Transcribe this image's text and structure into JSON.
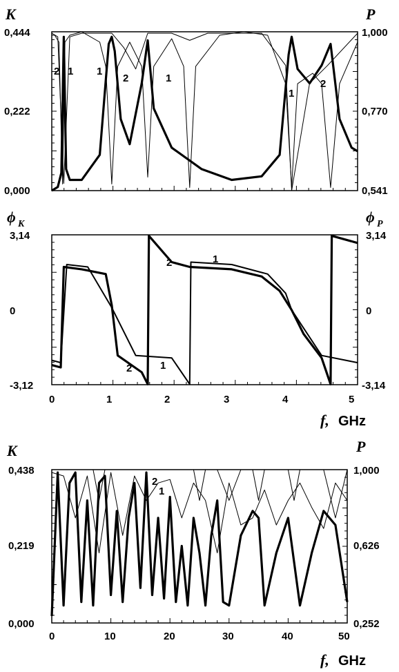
{
  "chart_data": [
    {
      "type": "line",
      "panel": "top",
      "ylabel_left": "K",
      "ylabel_right": "P",
      "xlim": [
        0,
        5.1
      ],
      "ylim_left": [
        0.0,
        0.444
      ],
      "ylim_right": [
        0.541,
        1.0
      ],
      "yticks_left": [
        "0,444",
        "0,222",
        "0,000"
      ],
      "yticks_right": [
        "1,000",
        "0,770",
        "0,541"
      ],
      "curve_labels": [
        "1",
        "2",
        "1",
        "2",
        "1",
        "1",
        "2"
      ],
      "series": [
        {
          "name": "K (curve 1, thick)",
          "style": "thick",
          "axis": "left",
          "x": [
            0.0,
            0.1,
            0.16,
            0.2,
            0.24,
            0.3,
            0.5,
            0.8,
            0.95,
            1.0,
            1.05,
            1.15,
            1.3,
            1.5,
            1.6,
            1.7,
            2.0,
            2.5,
            3.0,
            3.5,
            3.8,
            3.95,
            4.0,
            4.1,
            4.3,
            4.5,
            4.65,
            4.8,
            5.0,
            5.1
          ],
          "values": [
            0.0,
            0.01,
            0.05,
            0.43,
            0.06,
            0.03,
            0.03,
            0.1,
            0.41,
            0.43,
            0.39,
            0.2,
            0.13,
            0.3,
            0.42,
            0.23,
            0.12,
            0.06,
            0.03,
            0.04,
            0.1,
            0.38,
            0.43,
            0.34,
            0.3,
            0.35,
            0.41,
            0.2,
            0.12,
            0.11
          ]
        },
        {
          "name": "P (curve 2, thin)",
          "style": "thin",
          "axis": "right",
          "x": [
            0.0,
            0.05,
            0.12,
            0.18,
            0.22,
            0.3,
            0.5,
            0.8,
            0.9,
            1.0,
            1.1,
            1.3,
            1.5,
            1.6,
            1.7,
            2.0,
            2.2,
            2.3,
            2.4,
            2.8,
            3.2,
            3.6,
            3.9,
            4.0,
            4.1,
            4.35,
            4.5,
            4.65,
            4.8,
            5.1
          ],
          "values": [
            0.99,
            0.99,
            0.97,
            0.56,
            0.97,
            0.99,
            1.0,
            0.97,
            0.9,
            0.56,
            0.9,
            0.97,
            0.9,
            0.58,
            0.9,
            0.98,
            0.9,
            0.55,
            0.9,
            0.99,
            1.0,
            0.99,
            0.85,
            0.55,
            0.85,
            0.88,
            0.85,
            0.55,
            0.85,
            0.97
          ]
        },
        {
          "name": "K (curve 2, thin)",
          "style": "thin",
          "axis": "left",
          "x": [
            0.0,
            0.1,
            0.2,
            0.3,
            0.5,
            1.0,
            1.2,
            1.4,
            1.6,
            2.0,
            2.3,
            2.6,
            3.0,
            3.5,
            3.9,
            4.0,
            4.3,
            4.6,
            5.1
          ],
          "values": [
            0.44,
            0.43,
            0.02,
            0.43,
            0.44,
            0.44,
            0.4,
            0.34,
            0.44,
            0.44,
            0.42,
            0.44,
            0.44,
            0.44,
            0.35,
            0.0,
            0.3,
            0.35,
            0.44
          ]
        }
      ]
    },
    {
      "type": "line",
      "panel": "middle",
      "ylabel_left": "ϕ",
      "ylabel_left_sub": "K",
      "ylabel_right": "ϕ",
      "ylabel_right_sub": "P",
      "xlim": [
        0,
        5.1
      ],
      "ylim_left": [
        -3.12,
        3.14
      ],
      "ylim_right": [
        -3.14,
        3.14
      ],
      "yticks_left": [
        "3,14",
        "0",
        "-3,12"
      ],
      "yticks_right": [
        "3,14",
        "0",
        "-3,14"
      ],
      "xticks": [
        "0",
        "1",
        "2",
        "3",
        "4",
        "5"
      ],
      "xlabel": "f,",
      "xunit": "GHz",
      "curve_labels": [
        "2",
        "1",
        "2",
        "1"
      ],
      "series": [
        {
          "name": "phi_K (curve 1)",
          "style": "thick",
          "x": [
            0.0,
            0.15,
            0.2,
            0.5,
            0.9,
            1.0,
            1.1,
            1.5,
            1.6,
            1.62,
            2.0,
            2.3,
            3.0,
            3.5,
            3.8,
            4.0,
            4.2,
            4.5,
            4.65,
            4.67,
            5.1
          ],
          "values": [
            -2.3,
            -2.4,
            1.8,
            1.7,
            1.5,
            0.2,
            -1.9,
            -2.6,
            -3.1,
            3.1,
            2.0,
            1.8,
            1.7,
            1.4,
            0.8,
            0.0,
            -1.0,
            -2.0,
            -3.1,
            3.1,
            2.8
          ]
        },
        {
          "name": "phi_P (curve 2)",
          "style": "medium",
          "x": [
            0.0,
            0.15,
            0.25,
            0.6,
            1.0,
            1.4,
            2.0,
            2.3,
            2.32,
            3.0,
            3.6,
            3.9,
            4.0,
            4.5,
            5.1
          ],
          "values": [
            -2.1,
            -2.2,
            1.9,
            1.8,
            0.1,
            -1.9,
            -2.0,
            -3.1,
            2.0,
            1.9,
            1.5,
            0.7,
            0.0,
            -1.9,
            -2.2
          ]
        }
      ]
    },
    {
      "type": "line",
      "panel": "bottom",
      "ylabel_left": "K",
      "ylabel_right": "P",
      "xlim": [
        0,
        50
      ],
      "ylim_left": [
        0.0,
        0.438
      ],
      "ylim_right": [
        0.252,
        1.0
      ],
      "yticks_left": [
        "0,438",
        "0,219",
        "0,000"
      ],
      "yticks_right": [
        "1,000",
        "0,626",
        "0,252"
      ],
      "xticks": [
        "0",
        "10",
        "20",
        "30",
        "40",
        "50"
      ],
      "xlabel": "f,",
      "xunit": "GHz",
      "curve_labels": [
        "2",
        "1"
      ],
      "series": [
        {
          "name": "K (curve 1, thick)",
          "style": "thick",
          "x": [
            0,
            1,
            2,
            3,
            4,
            5,
            6,
            7,
            8,
            9,
            10,
            11,
            12,
            13,
            14,
            15,
            16,
            17,
            18,
            19,
            20,
            21,
            22,
            23,
            24,
            25,
            26,
            27,
            28,
            29,
            30,
            32,
            34,
            35,
            36,
            38,
            40,
            42,
            44,
            46,
            48,
            50
          ],
          "values": [
            0.02,
            0.43,
            0.05,
            0.4,
            0.43,
            0.06,
            0.35,
            0.05,
            0.4,
            0.42,
            0.08,
            0.32,
            0.06,
            0.3,
            0.4,
            0.1,
            0.43,
            0.08,
            0.3,
            0.07,
            0.36,
            0.06,
            0.22,
            0.05,
            0.3,
            0.2,
            0.05,
            0.25,
            0.35,
            0.06,
            0.05,
            0.25,
            0.32,
            0.3,
            0.05,
            0.2,
            0.3,
            0.05,
            0.2,
            0.32,
            0.28,
            0.06
          ]
        },
        {
          "name": "P (curve 2, thin)",
          "style": "thin",
          "x": [
            0,
            1,
            2,
            3,
            4,
            5,
            6,
            7,
            8,
            9,
            10,
            11,
            12,
            13,
            14,
            15,
            16,
            17,
            18,
            19,
            20,
            22,
            24,
            25,
            26,
            27,
            28,
            30,
            32,
            34,
            35,
            36,
            38,
            40,
            41,
            42,
            44,
            46,
            48,
            50
          ],
          "values": [
            0.95,
            0.98,
            0.5,
            0.98,
            0.45,
            0.97,
            0.5,
            0.99,
            0.35,
            0.98,
            0.98,
            0.6,
            0.98,
            0.55,
            0.96,
            0.5,
            0.98,
            0.85,
            0.9,
            0.6,
            0.97,
            0.95,
            0.6,
            0.35,
            0.98,
            0.9,
            0.85,
            0.35,
            0.9,
            0.98,
            0.35,
            0.95,
            0.9,
            0.45,
            0.35,
            0.9,
            0.98,
            0.9,
            0.3,
            0.9
          ]
        },
        {
          "name": "K (curve 2, thin)",
          "style": "thin",
          "x": [
            0,
            2,
            4,
            6,
            8,
            10,
            12,
            14,
            16,
            18,
            20,
            22,
            24,
            26,
            28,
            30,
            32,
            34,
            36,
            38,
            40,
            42,
            44,
            46,
            48,
            50
          ],
          "values": [
            0.43,
            0.42,
            0.3,
            0.42,
            0.2,
            0.43,
            0.25,
            0.42,
            0.35,
            0.4,
            0.41,
            0.3,
            0.4,
            0.35,
            0.2,
            0.4,
            0.28,
            0.3,
            0.38,
            0.28,
            0.35,
            0.4,
            0.33,
            0.27,
            0.4,
            0.35
          ]
        }
      ]
    }
  ]
}
